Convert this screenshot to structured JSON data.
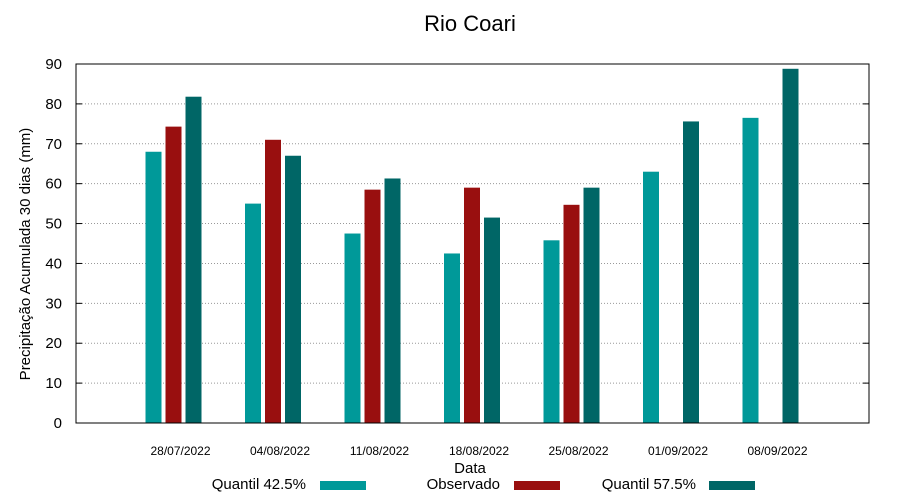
{
  "chart_data": {
    "type": "bar",
    "title": "Rio Coari",
    "xlabel": "Data",
    "ylabel": "Precipitação Acumulada 30 dias (mm)",
    "ylim": [
      0,
      90
    ],
    "yticks": [
      0,
      10,
      20,
      30,
      40,
      50,
      60,
      70,
      80,
      90
    ],
    "grid": true,
    "legend_position": "bottom",
    "categories": [
      "28/07/2022",
      "04/08/2022",
      "11/08/2022",
      "18/08/2022",
      "25/08/2022",
      "01/09/2022",
      "08/09/2022"
    ],
    "series": [
      {
        "name": "Quantil 42.5%",
        "color": "#009999",
        "values": [
          68,
          55,
          47.5,
          42.5,
          45.8,
          63,
          76.5
        ]
      },
      {
        "name": "Observado",
        "color": "#990f0f",
        "values": [
          74.3,
          71,
          58.5,
          59,
          54.7,
          null,
          null
        ]
      },
      {
        "name": "Quantil 57.5%",
        "color": "#006666",
        "values": [
          81.8,
          67,
          61.3,
          51.5,
          59,
          75.6,
          88.8
        ]
      }
    ]
  }
}
